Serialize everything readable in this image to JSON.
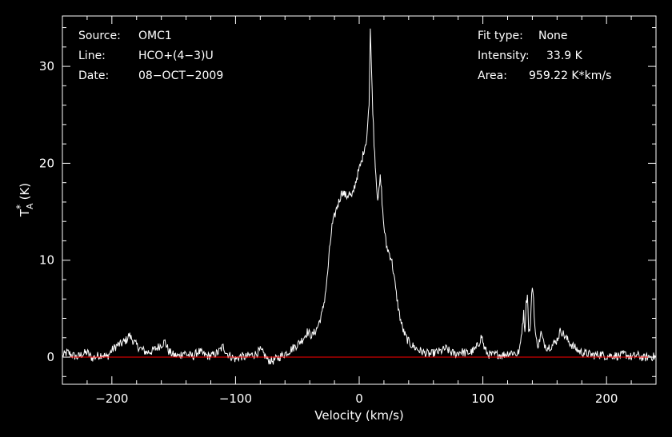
{
  "header": {
    "source_label": "Source:",
    "source_value": "OMC1",
    "line_label": "Line:",
    "line_value": "HCO+(4−3)U",
    "date_label": "Date:",
    "date_value": "08−OCT−2009",
    "fit_label": "Fit type:",
    "fit_value": "None",
    "intensity_label": "Intensity:",
    "intensity_value": "33.9 K",
    "area_label": "Area:",
    "area_value": "959.22 K*km/s"
  },
  "chart_data": {
    "type": "line",
    "xlabel": "Velocity (km/s)",
    "ylabel_main": "T",
    "ylabel_sup": "*",
    "ylabel_sub": "A",
    "ylabel_unit": "(K)",
    "xlim": [
      -240,
      240
    ],
    "ylim": [
      -2.8,
      35.2
    ],
    "x_ticks": [
      -200,
      -100,
      0,
      100,
      200
    ],
    "x_tick_labels": [
      "−200",
      "−100",
      "0",
      "100",
      "200"
    ],
    "y_ticks": [
      0,
      10,
      20,
      30
    ],
    "y_tick_labels": [
      "0",
      "10",
      "20",
      "30"
    ],
    "x_minor_step": 20,
    "y_minor_step": 2,
    "baseline": 0,
    "colors": {
      "spectrum": "#ffffff",
      "baseline": "#ff0000",
      "axes": "#ffffff"
    },
    "series": [
      {
        "values": [
          [
            -240,
            0.1
          ],
          [
            -236,
            0.5
          ],
          [
            -232,
            0.2
          ],
          [
            -228,
            0.0
          ],
          [
            -224,
            0.3
          ],
          [
            -220,
            0.5
          ],
          [
            -216,
            -0.1
          ],
          [
            -212,
            0.1
          ],
          [
            -208,
            0.3
          ],
          [
            -204,
            0.0
          ],
          [
            -200,
            0.7
          ],
          [
            -196,
            1.2
          ],
          [
            -192,
            1.4
          ],
          [
            -188,
            1.8
          ],
          [
            -186,
            2.3
          ],
          [
            -184,
            1.9
          ],
          [
            -180,
            1.2
          ],
          [
            -176,
            0.8
          ],
          [
            -172,
            0.5
          ],
          [
            -168,
            0.6
          ],
          [
            -164,
            0.9
          ],
          [
            -160,
            1.3
          ],
          [
            -157,
            1.6
          ],
          [
            -154,
            0.6
          ],
          [
            -150,
            0.2
          ],
          [
            -146,
            0.1
          ],
          [
            -142,
            0.5
          ],
          [
            -138,
            0.2
          ],
          [
            -134,
            0.1
          ],
          [
            -130,
            0.6
          ],
          [
            -126,
            0.3
          ],
          [
            -122,
            0.1
          ],
          [
            -118,
            0.2
          ],
          [
            -114,
            0.5
          ],
          [
            -110,
            1.1
          ],
          [
            -107,
            0.4
          ],
          [
            -104,
            0.1
          ],
          [
            -100,
            -0.2
          ],
          [
            -96,
            0.1
          ],
          [
            -92,
            0.0
          ],
          [
            -88,
            0.2
          ],
          [
            -84,
            0.3
          ],
          [
            -80,
            0.7
          ],
          [
            -77,
            0.3
          ],
          [
            -74,
            -0.3
          ],
          [
            -70,
            -0.4
          ],
          [
            -66,
            -0.1
          ],
          [
            -62,
            0.2
          ],
          [
            -58,
            0.5
          ],
          [
            -54,
            0.9
          ],
          [
            -50,
            1.3
          ],
          [
            -46,
            1.8
          ],
          [
            -42,
            2.6
          ],
          [
            -38,
            2.2
          ],
          [
            -34,
            3.0
          ],
          [
            -30,
            4.5
          ],
          [
            -28,
            6.0
          ],
          [
            -26,
            8.0
          ],
          [
            -24,
            11.0
          ],
          [
            -22,
            13.5
          ],
          [
            -20,
            14.5
          ],
          [
            -18,
            15.5
          ],
          [
            -16,
            16.2
          ],
          [
            -14,
            17.1
          ],
          [
            -12,
            16.8
          ],
          [
            -10,
            16.6
          ],
          [
            -8,
            16.9
          ],
          [
            -6,
            16.4
          ],
          [
            -4,
            17.5
          ],
          [
            -2,
            18.5
          ],
          [
            0,
            19.4
          ],
          [
            2,
            20.2
          ],
          [
            4,
            21.5
          ],
          [
            6,
            22.5
          ],
          [
            8,
            26.0
          ],
          [
            9,
            33.9
          ],
          [
            10,
            29.5
          ],
          [
            11,
            25.5
          ],
          [
            12,
            22.2
          ],
          [
            13,
            20.0
          ],
          [
            14,
            17.8
          ],
          [
            15,
            16.5
          ],
          [
            16,
            17.0
          ],
          [
            17,
            18.5
          ],
          [
            18,
            17.2
          ],
          [
            19,
            15.0
          ],
          [
            20,
            13.5
          ],
          [
            22,
            11.5
          ],
          [
            24,
            10.8
          ],
          [
            26,
            10.2
          ],
          [
            28,
            8.5
          ],
          [
            30,
            6.5
          ],
          [
            32,
            4.8
          ],
          [
            34,
            3.5
          ],
          [
            36,
            2.6
          ],
          [
            38,
            2.0
          ],
          [
            40,
            1.6
          ],
          [
            42,
            1.3
          ],
          [
            46,
            0.9
          ],
          [
            50,
            0.6
          ],
          [
            54,
            0.4
          ],
          [
            58,
            0.3
          ],
          [
            62,
            0.5
          ],
          [
            66,
            0.6
          ],
          [
            70,
            0.9
          ],
          [
            74,
            0.5
          ],
          [
            78,
            0.3
          ],
          [
            82,
            0.6
          ],
          [
            86,
            0.4
          ],
          [
            90,
            0.5
          ],
          [
            94,
            0.8
          ],
          [
            97,
            1.5
          ],
          [
            99,
            2.2
          ],
          [
            101,
            1.0
          ],
          [
            104,
            0.3
          ],
          [
            108,
            0.2
          ],
          [
            112,
            0.3
          ],
          [
            116,
            0.2
          ],
          [
            120,
            0.4
          ],
          [
            124,
            0.5
          ],
          [
            128,
            0.3
          ],
          [
            130,
            0.9
          ],
          [
            132,
            3.4
          ],
          [
            133,
            4.5
          ],
          [
            134,
            2.8
          ],
          [
            135,
            5.5
          ],
          [
            136,
            6.6
          ],
          [
            137,
            3.0
          ],
          [
            138,
            2.5
          ],
          [
            139,
            5.0
          ],
          [
            140,
            7.5
          ],
          [
            141,
            6.0
          ],
          [
            142,
            3.2
          ],
          [
            143,
            1.8
          ],
          [
            145,
            1.2
          ],
          [
            147,
            2.5
          ],
          [
            149,
            1.5
          ],
          [
            152,
            1.0
          ],
          [
            156,
            1.2
          ],
          [
            160,
            1.8
          ],
          [
            163,
            2.8
          ],
          [
            166,
            2.2
          ],
          [
            170,
            1.5
          ],
          [
            174,
            1.0
          ],
          [
            178,
            0.6
          ],
          [
            182,
            0.4
          ],
          [
            186,
            0.3
          ],
          [
            190,
            0.2
          ],
          [
            195,
            0.3
          ],
          [
            200,
            0.1
          ],
          [
            205,
            0.2
          ],
          [
            210,
            0.1
          ],
          [
            215,
            0.3
          ],
          [
            220,
            0.0
          ],
          [
            225,
            0.2
          ],
          [
            230,
            -0.1
          ],
          [
            235,
            0.1
          ],
          [
            240,
            0.0
          ]
        ]
      }
    ]
  }
}
